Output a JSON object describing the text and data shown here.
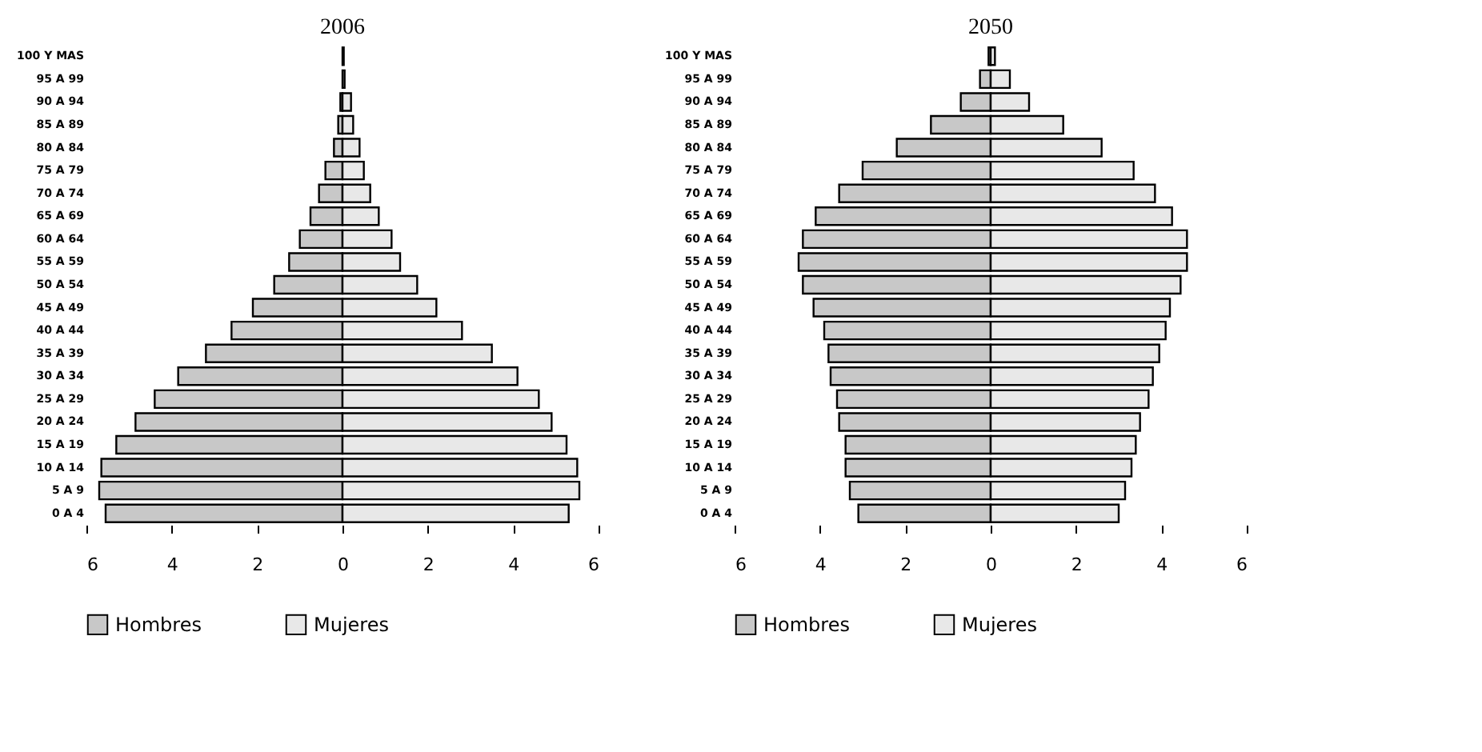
{
  "chart_data": [
    {
      "type": "bar",
      "orientation": "horizontal",
      "stacked": true,
      "title": "2006",
      "categories": [
        "100 Y MAS",
        "95 A 99",
        "90 A 94",
        "85 A 89",
        "80 A 84",
        "75 A 79",
        "70 A 74",
        "65 A 69",
        "60 A 64",
        "55 A 59",
        "50 A 54",
        "45 A 49",
        "40 A 44",
        "35 A 39",
        "30 A 34",
        "25 A 29",
        "20 A 24",
        "15 A 19",
        "10 A 14",
        "5 A 9",
        "0 A 4"
      ],
      "series": [
        {
          "name": "Hombres",
          "color": "#c8c8c8",
          "values": [
            null,
            null,
            -0.05,
            -0.1,
            -0.2,
            -0.4,
            -0.55,
            -0.75,
            -1.0,
            -1.25,
            -1.6,
            -2.1,
            -2.6,
            -3.2,
            -3.85,
            -4.4,
            -4.85,
            -5.3,
            -5.65,
            -5.7,
            -5.55
          ]
        },
        {
          "name": "Mujeres",
          "color": "#e8e8e8",
          "values": [
            0.03,
            0.05,
            0.2,
            0.25,
            0.4,
            0.5,
            0.65,
            0.85,
            1.15,
            1.35,
            1.75,
            2.2,
            2.8,
            3.5,
            4.1,
            4.6,
            4.9,
            5.25,
            5.5,
            5.55,
            5.3
          ]
        }
      ],
      "xlim": [
        -6,
        6
      ],
      "xticks": [
        {
          "value": -6,
          "label": "6"
        },
        {
          "value": -4,
          "label": "4"
        },
        {
          "value": -2,
          "label": "2"
        },
        0,
        2,
        4,
        6
      ],
      "legend": "bottom",
      "grid": false
    },
    {
      "type": "bar",
      "orientation": "horizontal",
      "stacked": true,
      "title": "2050",
      "categories": [
        "100 Y MAS",
        "95 A 99",
        "90 A 94",
        "85 A 89",
        "80 A 84",
        "75 A 79",
        "70 A 74",
        "65 A 69",
        "60 A 64",
        "55 A 59",
        "50 A 54",
        "45 A 49",
        "40 A 44",
        "35 A 39",
        "30 A 34",
        "25 A 29",
        "20 A 24",
        "15 A 19",
        "10 A 14",
        "5 A 9",
        "0 A 4"
      ],
      "series": [
        {
          "name": "Hombres",
          "color": "#c8c8c8",
          "values": [
            -0.05,
            -0.25,
            -0.7,
            -1.4,
            -2.2,
            -3.0,
            -3.55,
            -4.1,
            -4.4,
            -4.5,
            -4.4,
            -4.15,
            -3.9,
            -3.8,
            -3.75,
            -3.6,
            -3.55,
            -3.4,
            -3.4,
            -3.3,
            -3.1
          ]
        },
        {
          "name": "Mujeres",
          "color": "#e8e8e8",
          "values": [
            0.1,
            0.45,
            0.9,
            1.7,
            2.6,
            3.35,
            3.85,
            4.25,
            4.6,
            4.6,
            4.45,
            4.2,
            4.1,
            3.95,
            3.8,
            3.7,
            3.5,
            3.4,
            3.3,
            3.15,
            3.0
          ]
        }
      ],
      "xlim": [
        -6,
        6
      ],
      "xticks": [
        {
          "value": -6,
          "label": "6"
        },
        {
          "value": -4,
          "label": "4"
        },
        {
          "value": -2,
          "label": "2"
        },
        0,
        2,
        4,
        6
      ],
      "legend": "bottom",
      "grid": false
    }
  ]
}
